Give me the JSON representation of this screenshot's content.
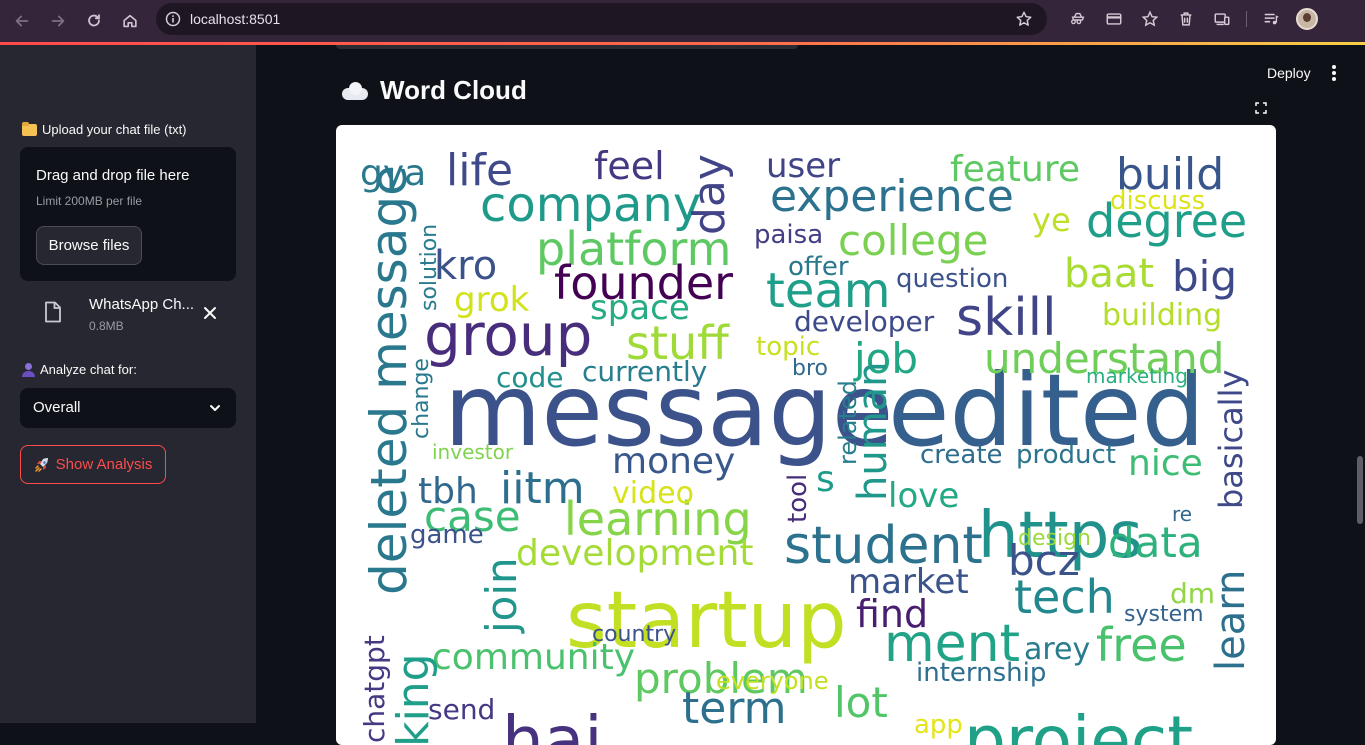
{
  "browser": {
    "url": "localhost:8501"
  },
  "sidebar": {
    "upload_label": "Upload your chat file (txt)",
    "dropzone_title": "Drag and drop file here",
    "dropzone_limit": "Limit 200MB per file",
    "browse_label": "Browse files",
    "file_name": "WhatsApp Ch...",
    "file_size": "0.8MB",
    "analyze_label": "Analyze chat for:",
    "select_value": "Overall",
    "show_analysis_label": "Show Analysis"
  },
  "header": {
    "deploy_label": "Deploy"
  },
  "main": {
    "section_title": "Word Cloud"
  },
  "colors": {
    "accent": "#ff4b4b",
    "sidebar_bg": "#262730",
    "main_bg": "#0e1117"
  },
  "word_cloud": {
    "palette": "viridis",
    "words": [
      {
        "text": "message",
        "color": "#3b528b"
      },
      {
        "text": "edited",
        "color": "#355f8d"
      },
      {
        "text": "startup",
        "color": "#c2df23"
      },
      {
        "text": "https",
        "color": "#21918c"
      },
      {
        "text": "project",
        "color": "#1fa187"
      },
      {
        "text": "hai",
        "color": "#46327e"
      },
      {
        "text": "student",
        "color": "#2c728e"
      },
      {
        "text": "group",
        "color": "#472d7b"
      },
      {
        "text": "deleted message",
        "color": "#2a788e"
      },
      {
        "text": "company",
        "color": "#1f9a8a"
      },
      {
        "text": "platform",
        "color": "#5ec962"
      },
      {
        "text": "experience",
        "color": "#2c728e"
      },
      {
        "text": "founder",
        "color": "#440154"
      },
      {
        "text": "team",
        "color": "#1f9e89"
      },
      {
        "text": "skill",
        "color": "#414487"
      },
      {
        "text": "college",
        "color": "#7ad151"
      },
      {
        "text": "degree",
        "color": "#1f9e89"
      },
      {
        "text": "build",
        "color": "#39568c"
      },
      {
        "text": "understand",
        "color": "#6ece58"
      },
      {
        "text": "learning",
        "color": "#86d549"
      },
      {
        "text": "development",
        "color": "#a5db36"
      },
      {
        "text": "problem",
        "color": "#5ec962"
      },
      {
        "text": "community",
        "color": "#4ac16d"
      },
      {
        "text": "stuff",
        "color": "#a0da39"
      },
      {
        "text": "life",
        "color": "#3e4a89"
      },
      {
        "text": "feel",
        "color": "#453781"
      },
      {
        "text": "feature",
        "color": "#5ec962"
      },
      {
        "text": "user",
        "color": "#414487"
      },
      {
        "text": "day",
        "color": "#414487"
      },
      {
        "text": "gya",
        "color": "#2a788e"
      },
      {
        "text": "kro",
        "color": "#3b528b"
      },
      {
        "text": "grok",
        "color": "#d2e21b"
      },
      {
        "text": "space",
        "color": "#25ac82"
      },
      {
        "text": "baat",
        "color": "#a8db34"
      },
      {
        "text": "big",
        "color": "#3e4989"
      },
      {
        "text": "job",
        "color": "#22a785"
      },
      {
        "text": "building",
        "color": "#b5de2b"
      },
      {
        "text": "developer",
        "color": "#3e4a89"
      },
      {
        "text": "question",
        "color": "#3b528b"
      },
      {
        "text": "paisa",
        "color": "#433e85"
      },
      {
        "text": "offer",
        "color": "#2a788e"
      },
      {
        "text": "ye",
        "color": "#bddf26"
      },
      {
        "text": "discuss",
        "color": "#dde318"
      },
      {
        "text": "topic",
        "color": "#c8e020"
      },
      {
        "text": "bro",
        "color": "#31688e"
      },
      {
        "text": "currently",
        "color": "#287d8e"
      },
      {
        "text": "code",
        "color": "#218f8d"
      },
      {
        "text": "marketing",
        "color": "#2ab07f"
      },
      {
        "text": "iitm",
        "color": "#2d708e"
      },
      {
        "text": "tbh",
        "color": "#31688e"
      },
      {
        "text": "money",
        "color": "#38588c"
      },
      {
        "text": "s",
        "color": "#1e9b8a"
      },
      {
        "text": "video",
        "color": "#d8e219"
      },
      {
        "text": "case",
        "color": "#3dbc74"
      },
      {
        "text": "nice",
        "color": "#3dbc74"
      },
      {
        "text": "love",
        "color": "#22a884"
      },
      {
        "text": "create",
        "color": "#2f6c8e"
      },
      {
        "text": "product",
        "color": "#2b748e"
      },
      {
        "text": "human",
        "color": "#1f978b"
      },
      {
        "text": "related",
        "color": "#277f8e"
      },
      {
        "text": "tool",
        "color": "#472c7a"
      },
      {
        "text": "basically",
        "color": "#3f4889"
      },
      {
        "text": "re",
        "color": "#31688e"
      },
      {
        "text": "data",
        "color": "#2db27d"
      },
      {
        "text": "bcz",
        "color": "#3b528b"
      },
      {
        "text": "design",
        "color": "#9bd93c"
      },
      {
        "text": "join",
        "color": "#1f958b"
      },
      {
        "text": "market",
        "color": "#3a538b"
      },
      {
        "text": "tech",
        "color": "#23888e"
      },
      {
        "text": "find",
        "color": "#481f70"
      },
      {
        "text": "dm",
        "color": "#90d743"
      },
      {
        "text": "system",
        "color": "#33628d"
      },
      {
        "text": "learn",
        "color": "#2d708e"
      },
      {
        "text": "ment",
        "color": "#20a386"
      },
      {
        "text": "arey",
        "color": "#287c8e"
      },
      {
        "text": "free",
        "color": "#4ac16d"
      },
      {
        "text": "internship",
        "color": "#2e6e8e"
      },
      {
        "text": "country",
        "color": "#3b528b"
      },
      {
        "text": "everyone",
        "color": "#c5e021"
      },
      {
        "text": "lot",
        "color": "#52c569"
      },
      {
        "text": "term",
        "color": "#2d708e"
      },
      {
        "text": "send",
        "color": "#443983"
      },
      {
        "text": "game",
        "color": "#3b528b"
      },
      {
        "text": "investor",
        "color": "#7fd34e"
      },
      {
        "text": "change",
        "color": "#29798e"
      },
      {
        "text": "solution",
        "color": "#287c8e"
      },
      {
        "text": "chatgpt",
        "color": "#443a83"
      },
      {
        "text": "rking",
        "color": "#1f9e89"
      },
      {
        "text": "app",
        "color": "#e5e419"
      }
    ]
  }
}
